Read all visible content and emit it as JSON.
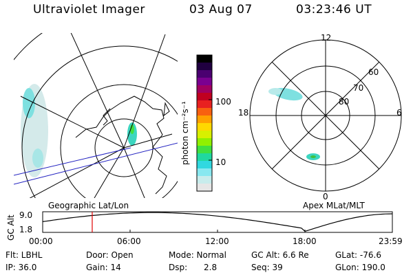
{
  "header": {
    "instrument": "Ultraviolet Imager",
    "date": "03 Aug 07",
    "time": "03:23:46 UT"
  },
  "colorbar": {
    "unit_label": "photon cm⁻²s⁻¹",
    "ticks": [
      "100",
      "10"
    ],
    "colors": [
      "#000000",
      "#200040",
      "#4a0070",
      "#7a0090",
      "#a00060",
      "#c00020",
      "#e82020",
      "#f86010",
      "#ffa000",
      "#ffd800",
      "#d8f000",
      "#90f000",
      "#40e040",
      "#20d8a0",
      "#30d8e0",
      "#88e8f0",
      "#c8ecec",
      "#e6e6e6"
    ]
  },
  "polar_plot": {
    "labels": {
      "noon": "12",
      "dusk": "18",
      "dawn": "6",
      "midnight": "0"
    },
    "lat_labels": [
      "60",
      "70",
      "80"
    ]
  },
  "timeline": {
    "ylabel": "GC Alt",
    "y_ticks": [
      "9.0",
      "1.8"
    ],
    "left_caption": "Geographic Lat/Lon",
    "right_caption": "Apex MLat/MLT",
    "x_ticks": [
      "00:00",
      "06:00",
      "12:00",
      "18:00",
      "23:59"
    ],
    "marker_hour": 3.4,
    "marker_color": "#e00000"
  },
  "info": {
    "filter": "Flt: LBHL",
    "ip": "IP: 36.0",
    "door": "Door: Open",
    "gain": "Gain: 14",
    "mode": "Mode: Normal",
    "dsp_label": "Dsp:",
    "dsp_value": "2.8",
    "gc_alt": "GC Alt: 6.6 Re",
    "seq": "Seq: 39",
    "glat": "GLat: -76.6",
    "glon": "GLon: 190.0"
  }
}
